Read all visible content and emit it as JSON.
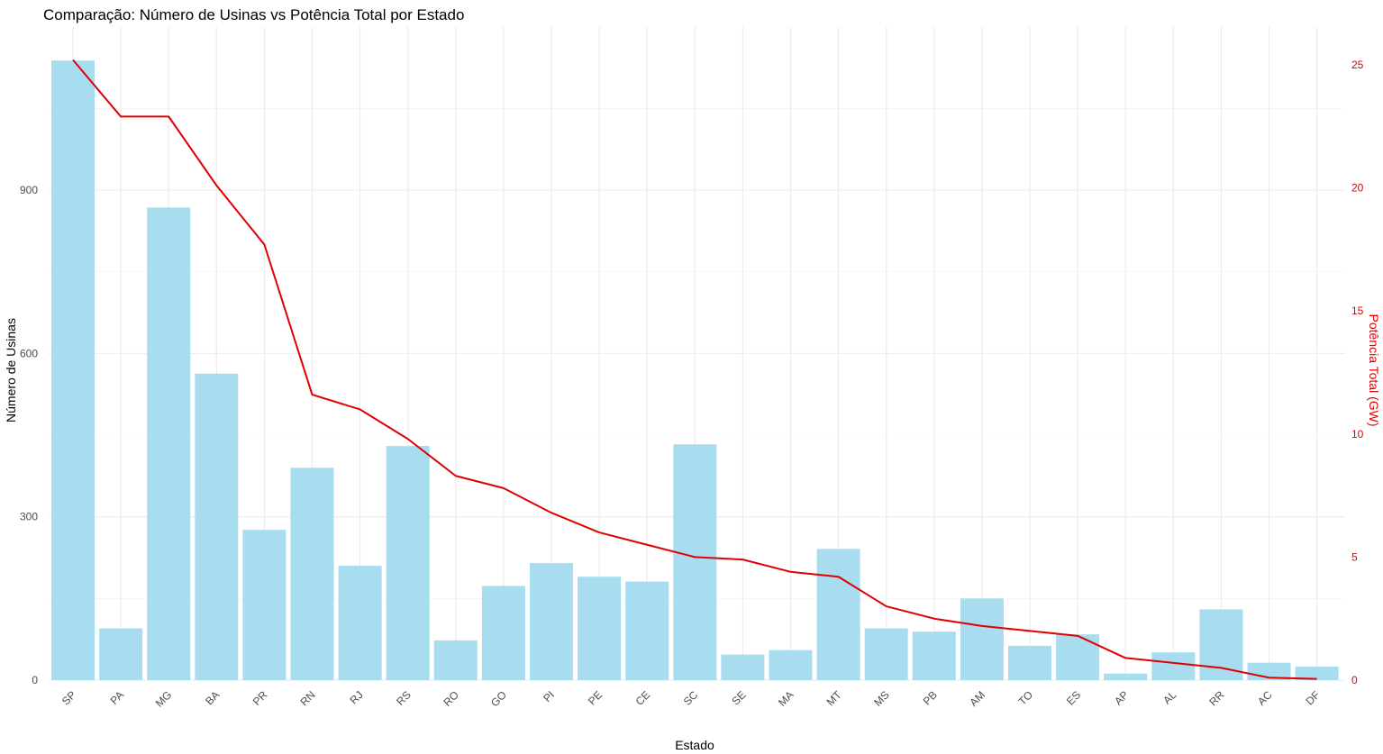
{
  "chart_data": {
    "type": "bar",
    "title": "Comparação: Número de Usinas vs Potência Total por Estado",
    "xlabel": "Estado",
    "ylabel": "Número de Usinas",
    "y2label": "Potência Total (GW)",
    "categories": [
      "SP",
      "PA",
      "MG",
      "BA",
      "PR",
      "RN",
      "RJ",
      "RS",
      "RO",
      "GO",
      "PI",
      "PE",
      "CE",
      "SC",
      "SE",
      "MA",
      "MT",
      "MS",
      "PB",
      "AM",
      "TO",
      "ES",
      "AP",
      "AL",
      "RR",
      "AC",
      "DF"
    ],
    "series": [
      {
        "axis": "left",
        "type": "bar",
        "color": "#a8dcef",
        "values": [
          1138,
          95,
          868,
          563,
          276,
          390,
          210,
          430,
          73,
          173,
          215,
          190,
          181,
          433,
          47,
          55,
          241,
          95,
          89,
          150,
          63,
          84,
          12,
          51,
          130,
          32,
          25
        ]
      },
      {
        "axis": "right",
        "type": "line",
        "color": "#e00000",
        "values": [
          25.2,
          22.9,
          22.9,
          20.1,
          17.7,
          11.6,
          11.0,
          9.8,
          8.3,
          7.8,
          6.8,
          6.0,
          5.5,
          5.0,
          4.9,
          4.4,
          4.2,
          3.0,
          2.5,
          2.2,
          2.0,
          1.8,
          0.9,
          0.7,
          0.5,
          0.1,
          0.05
        ]
      }
    ],
    "ylim": [
      0,
      1138
    ],
    "yticks": [
      0,
      300,
      600,
      900
    ],
    "y2lim": [
      0,
      25.2
    ],
    "y2ticks": [
      0,
      5,
      10,
      15,
      20,
      25
    ],
    "grid": true
  }
}
